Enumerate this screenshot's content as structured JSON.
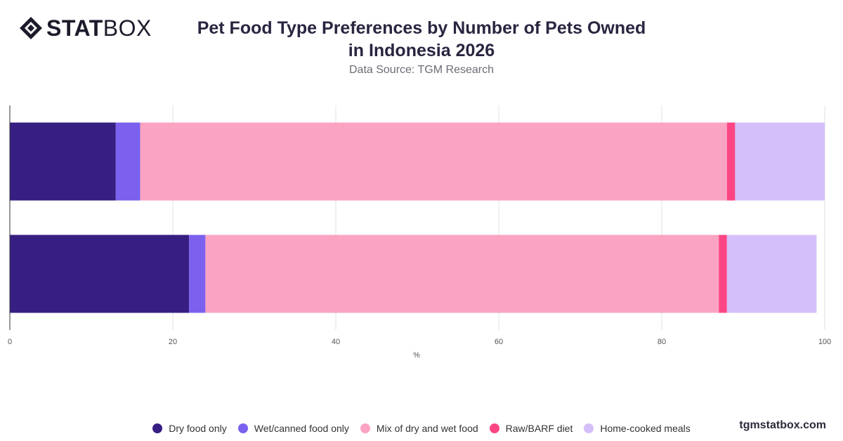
{
  "brand": {
    "logo_bold": "STAT",
    "logo_light": "BOX"
  },
  "title_line1": "Pet Food Type Preferences by Number of Pets Owned",
  "title_line2": "in Indonesia 2026",
  "subtitle": "Data Source: TGM Research",
  "footer": "tgmstatbox.com",
  "chart_data": {
    "type": "bar",
    "orientation": "horizontal",
    "stacked": true,
    "title": "Pet Food Type Preferences by Number of Pets Owned in Indonesia 2026",
    "subtitle": "Data Source: TGM Research",
    "xlabel": "%",
    "ylabel": "",
    "xlim": [
      0,
      100
    ],
    "xticks": [
      "0",
      "20",
      "40",
      "60",
      "80",
      "100"
    ],
    "categories": [
      "",
      ""
    ],
    "series": [
      {
        "name": "Dry food only",
        "color": "#371e83",
        "values": [
          13,
          22
        ]
      },
      {
        "name": "Wet/canned food only",
        "color": "#7b61ee",
        "values": [
          3,
          2
        ]
      },
      {
        "name": "Mix of dry and wet food",
        "color": "#fba3c2",
        "values": [
          72,
          63
        ]
      },
      {
        "name": "Raw/BARF diet",
        "color": "#fc4683",
        "values": [
          1,
          1
        ]
      },
      {
        "name": "Home-cooked meals",
        "color": "#d5bffa",
        "values": [
          11,
          11
        ]
      }
    ],
    "grid": true,
    "legend_position": "bottom"
  }
}
